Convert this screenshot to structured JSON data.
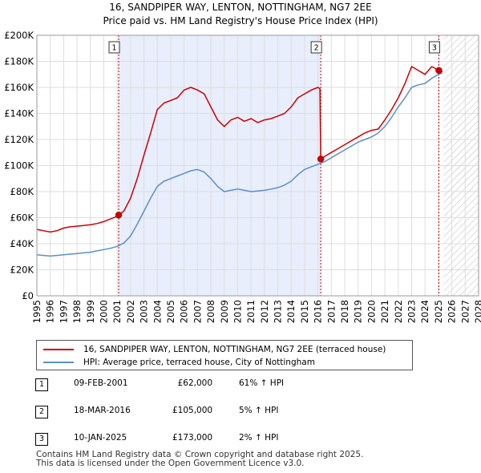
{
  "title_line1": "16, SANDPIPER WAY, LENTON, NOTTINGHAM, NG7 2EE",
  "title_line2": "Price paid vs. HM Land Registry's House Price Index (HPI)",
  "chart_data": {
    "type": "line",
    "title": "16, SANDPIPER WAY, LENTON, NOTTINGHAM, NG7 2EE",
    "subtitle": "Price paid vs. HM Land Registry's House Price Index (HPI)",
    "xlabel": "",
    "ylabel": "",
    "xlim": [
      1995,
      2028
    ],
    "ylim": [
      0,
      200000
    ],
    "y_ticks": [
      0,
      20000,
      40000,
      60000,
      80000,
      100000,
      120000,
      140000,
      160000,
      180000,
      200000
    ],
    "y_tick_labels": [
      "£0",
      "£20K",
      "£40K",
      "£60K",
      "£80K",
      "£100K",
      "£120K",
      "£140K",
      "£160K",
      "£180K",
      "£200K"
    ],
    "x_ticks": [
      1995,
      1996,
      1997,
      1998,
      1999,
      2000,
      2001,
      2002,
      2003,
      2004,
      2005,
      2006,
      2007,
      2008,
      2009,
      2010,
      2011,
      2012,
      2013,
      2014,
      2015,
      2016,
      2017,
      2018,
      2019,
      2020,
      2021,
      2022,
      2023,
      2024,
      2025,
      2026,
      2027,
      2028
    ],
    "grid": true,
    "shaded_region": [
      2001.11,
      2016.21
    ],
    "hatched_region": [
      2025.4,
      2028
    ],
    "series": [
      {
        "name": "16, SANDPIPER WAY, LENTON, NOTTINGHAM, NG7 2EE (terraced house)",
        "color": "#cc0000",
        "x": [
          1995.0,
          1995.5,
          1996.0,
          1996.5,
          1997.0,
          1997.5,
          1998.0,
          1998.5,
          1999.0,
          1999.5,
          2000.0,
          2000.5,
          2001.0,
          2001.11,
          2001.5,
          2002.0,
          2002.5,
          2003.0,
          2003.5,
          2004.0,
          2004.5,
          2005.0,
          2005.5,
          2006.0,
          2006.5,
          2007.0,
          2007.5,
          2008.0,
          2008.5,
          2009.0,
          2009.5,
          2010.0,
          2010.5,
          2011.0,
          2011.5,
          2012.0,
          2012.5,
          2013.0,
          2013.5,
          2014.0,
          2014.5,
          2015.0,
          2015.5,
          2016.0,
          2016.15,
          2016.21,
          2016.5,
          2017.0,
          2017.5,
          2018.0,
          2018.5,
          2019.0,
          2019.5,
          2020.0,
          2020.5,
          2021.0,
          2021.5,
          2022.0,
          2022.5,
          2023.0,
          2023.5,
          2024.0,
          2024.5,
          2025.03,
          2025.3
        ],
        "values": [
          51000,
          50000,
          49000,
          50000,
          52000,
          53000,
          53500,
          54000,
          54500,
          55500,
          57000,
          59000,
          61000,
          62000,
          65000,
          75000,
          90000,
          108000,
          125000,
          143000,
          148000,
          150000,
          152000,
          158000,
          160000,
          158000,
          155000,
          145000,
          135000,
          130000,
          135000,
          137000,
          134000,
          136000,
          133000,
          135000,
          136000,
          138000,
          140000,
          145000,
          152000,
          155000,
          158000,
          160000,
          159000,
          105000,
          107000,
          110000,
          113000,
          116000,
          119000,
          122000,
          125000,
          127000,
          128000,
          135000,
          143000,
          152000,
          163000,
          176000,
          173000,
          170000,
          176000,
          173000,
          172000
        ]
      },
      {
        "name": "HPI: Average price, terraced house, City of Nottingham",
        "color": "#5b8fc9",
        "x": [
          1995.0,
          1995.5,
          1996.0,
          1996.5,
          1997.0,
          1997.5,
          1998.0,
          1998.5,
          1999.0,
          1999.5,
          2000.0,
          2000.5,
          2001.0,
          2001.5,
          2002.0,
          2002.5,
          2003.0,
          2003.5,
          2004.0,
          2004.5,
          2005.0,
          2005.5,
          2006.0,
          2006.5,
          2007.0,
          2007.5,
          2008.0,
          2008.5,
          2009.0,
          2009.5,
          2010.0,
          2010.5,
          2011.0,
          2011.5,
          2012.0,
          2012.5,
          2013.0,
          2013.5,
          2014.0,
          2014.5,
          2015.0,
          2015.5,
          2016.0,
          2016.5,
          2017.0,
          2017.5,
          2018.0,
          2018.5,
          2019.0,
          2019.5,
          2020.0,
          2020.5,
          2021.0,
          2021.5,
          2022.0,
          2022.5,
          2023.0,
          2023.5,
          2024.0,
          2024.5,
          2025.0,
          2025.3
        ],
        "values": [
          31500,
          31000,
          30500,
          31000,
          31500,
          32000,
          32500,
          33000,
          33500,
          34500,
          35500,
          36500,
          38000,
          40500,
          46000,
          55000,
          65000,
          75000,
          84000,
          88000,
          90000,
          92000,
          94000,
          96000,
          97000,
          95000,
          90000,
          84000,
          80000,
          81000,
          82000,
          81000,
          80000,
          80500,
          81000,
          82000,
          83000,
          85000,
          88000,
          93000,
          97000,
          99000,
          101000,
          103000,
          106000,
          109000,
          112000,
          115000,
          118000,
          120000,
          122000,
          125000,
          130000,
          137000,
          145000,
          152000,
          160000,
          162000,
          163000,
          167000,
          170000,
          171000
        ]
      }
    ],
    "annotations": [
      {
        "label": "1",
        "date": "09-FEB-2001",
        "x": 2001.11,
        "y": 62000,
        "price": "£62,000",
        "hpi": "61% ↑ HPI"
      },
      {
        "label": "2",
        "date": "18-MAR-2016",
        "x": 2016.21,
        "y": 105000,
        "price": "£105,000",
        "hpi": "5% ↑ HPI"
      },
      {
        "label": "3",
        "date": "10-JAN-2025",
        "x": 2025.03,
        "y": 173000,
        "price": "£173,000",
        "hpi": "2% ↑ HPI"
      }
    ]
  },
  "legend": {
    "property": "16, SANDPIPER WAY, LENTON, NOTTINGHAM, NG7 2EE (terraced house)",
    "hpi": "HPI: Average price, terraced house, City of Nottingham"
  },
  "sales": [
    {
      "num": "1",
      "date": "09-FEB-2001",
      "price": "£62,000",
      "hpi": "61% ↑ HPI"
    },
    {
      "num": "2",
      "date": "18-MAR-2016",
      "price": "£105,000",
      "hpi": "5% ↑ HPI"
    },
    {
      "num": "3",
      "date": "10-JAN-2025",
      "price": "£173,000",
      "hpi": "2% ↑ HPI"
    }
  ],
  "footer": {
    "line1": "Contains HM Land Registry data © Crown copyright and database right 2025.",
    "line2": "This data is licensed under the Open Government Licence v3.0."
  }
}
